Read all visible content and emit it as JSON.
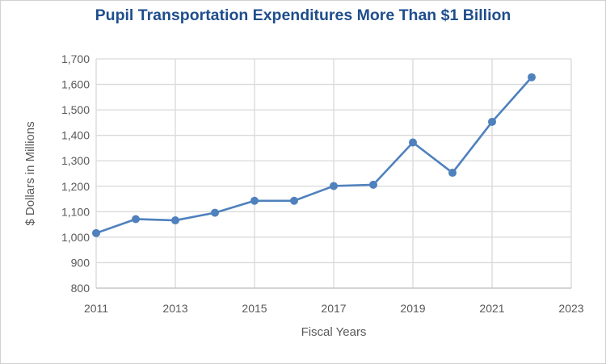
{
  "chart_data": {
    "type": "line",
    "title": "Pupil Transportation Expenditures More Than $1 Billion",
    "xlabel": "Fiscal Years",
    "ylabel": "$ Dollars in Millions",
    "xlim": [
      2011,
      2023
    ],
    "ylim": [
      800,
      1700
    ],
    "x_ticks": [
      "2011",
      "2013",
      "2015",
      "2017",
      "2019",
      "2021",
      "2023"
    ],
    "y_ticks": [
      "800",
      "900",
      "1,000",
      "1,100",
      "1,200",
      "1,300",
      "1,400",
      "1,500",
      "1,600",
      "1,700"
    ],
    "grid": true,
    "line_color": "#4f81bd",
    "series": [
      {
        "x": [
          2011,
          2012,
          2013,
          2014,
          2015,
          2016,
          2017,
          2018,
          2019,
          2020,
          2021,
          2022
        ],
        "values": [
          1016,
          1071,
          1066,
          1096,
          1143,
          1143,
          1201,
          1206,
          1372,
          1253,
          1453,
          1628
        ]
      }
    ]
  }
}
